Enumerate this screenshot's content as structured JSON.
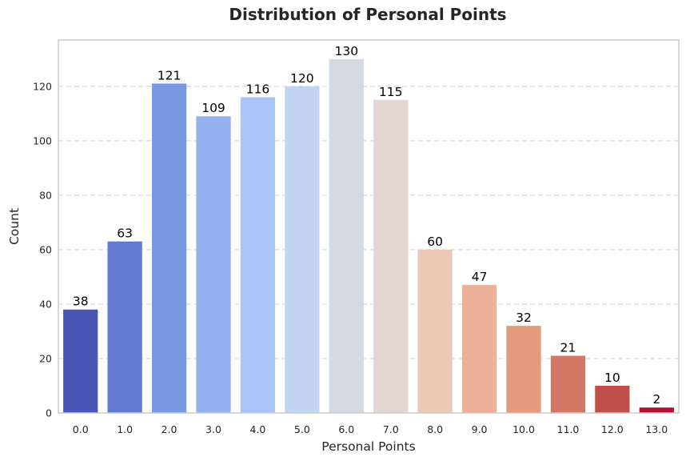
{
  "chart_data": {
    "type": "bar",
    "title": "Distribution of Personal Points",
    "xlabel": "Personal Points",
    "ylabel": "Count",
    "categories": [
      "0.0",
      "1.0",
      "2.0",
      "3.0",
      "4.0",
      "5.0",
      "6.0",
      "7.0",
      "8.0",
      "9.0",
      "10.0",
      "11.0",
      "12.0",
      "13.0"
    ],
    "values": [
      38,
      63,
      121,
      109,
      116,
      120,
      130,
      115,
      60,
      47,
      32,
      21,
      10,
      2
    ],
    "colors": [
      "#4a56b6",
      "#6179d1",
      "#7a97e2",
      "#94b0ee",
      "#abc3f6",
      "#c3d4f1",
      "#d4dae4",
      "#e4d7d1",
      "#ecc8b6",
      "#edb09a",
      "#e49a7d",
      "#d57863",
      "#be4f4a",
      "#b40f34"
    ],
    "ylim": [
      0,
      137
    ],
    "yticks": [
      0,
      20,
      40,
      60,
      80,
      100,
      120
    ],
    "grid": true,
    "grid_axis": "y",
    "legend": "none"
  }
}
